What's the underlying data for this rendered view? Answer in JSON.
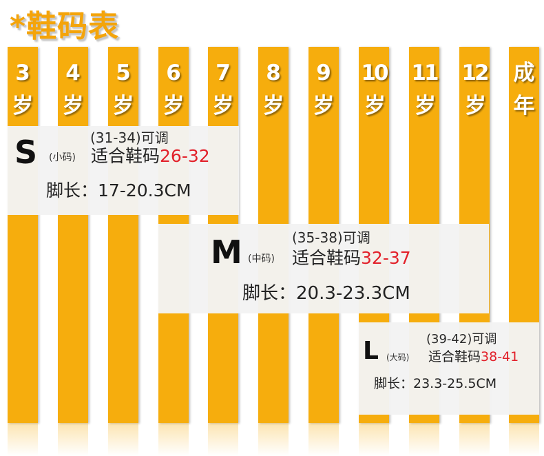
{
  "title": "*鞋码表",
  "columns": [
    {
      "label": "3\n岁"
    },
    {
      "label": "4\n岁"
    },
    {
      "label": "5\n岁"
    },
    {
      "label": "6\n岁"
    },
    {
      "label": "7\n岁"
    },
    {
      "label": "8\n岁"
    },
    {
      "label": "9\n岁"
    },
    {
      "label": "10\n岁"
    },
    {
      "label": "11\n岁"
    },
    {
      "label": "12\n岁"
    },
    {
      "label": "成\n年"
    }
  ],
  "sizes": [
    {
      "letter": "S",
      "cn": "(小码)",
      "adjust": "(31-34)可调",
      "fit_label": "适合鞋码",
      "fit_range": "26-32",
      "foot": "脚长：17-20.3CM"
    },
    {
      "letter": "M",
      "cn": "(中码)",
      "adjust": "(35-38)可调",
      "fit_label": "适合鞋码",
      "fit_range": "32-37",
      "foot": "脚长：20.3-23.3CM"
    },
    {
      "letter": "L",
      "cn": "(大码)",
      "adjust": "(39-42)可调",
      "fit_label": "适合鞋码",
      "fit_range": "38-41",
      "foot": "脚长：23.3-25.5CM"
    }
  ],
  "colors": {
    "bar": "#f6ad0d",
    "title": "#f4a40a",
    "range": "#e2202a"
  }
}
